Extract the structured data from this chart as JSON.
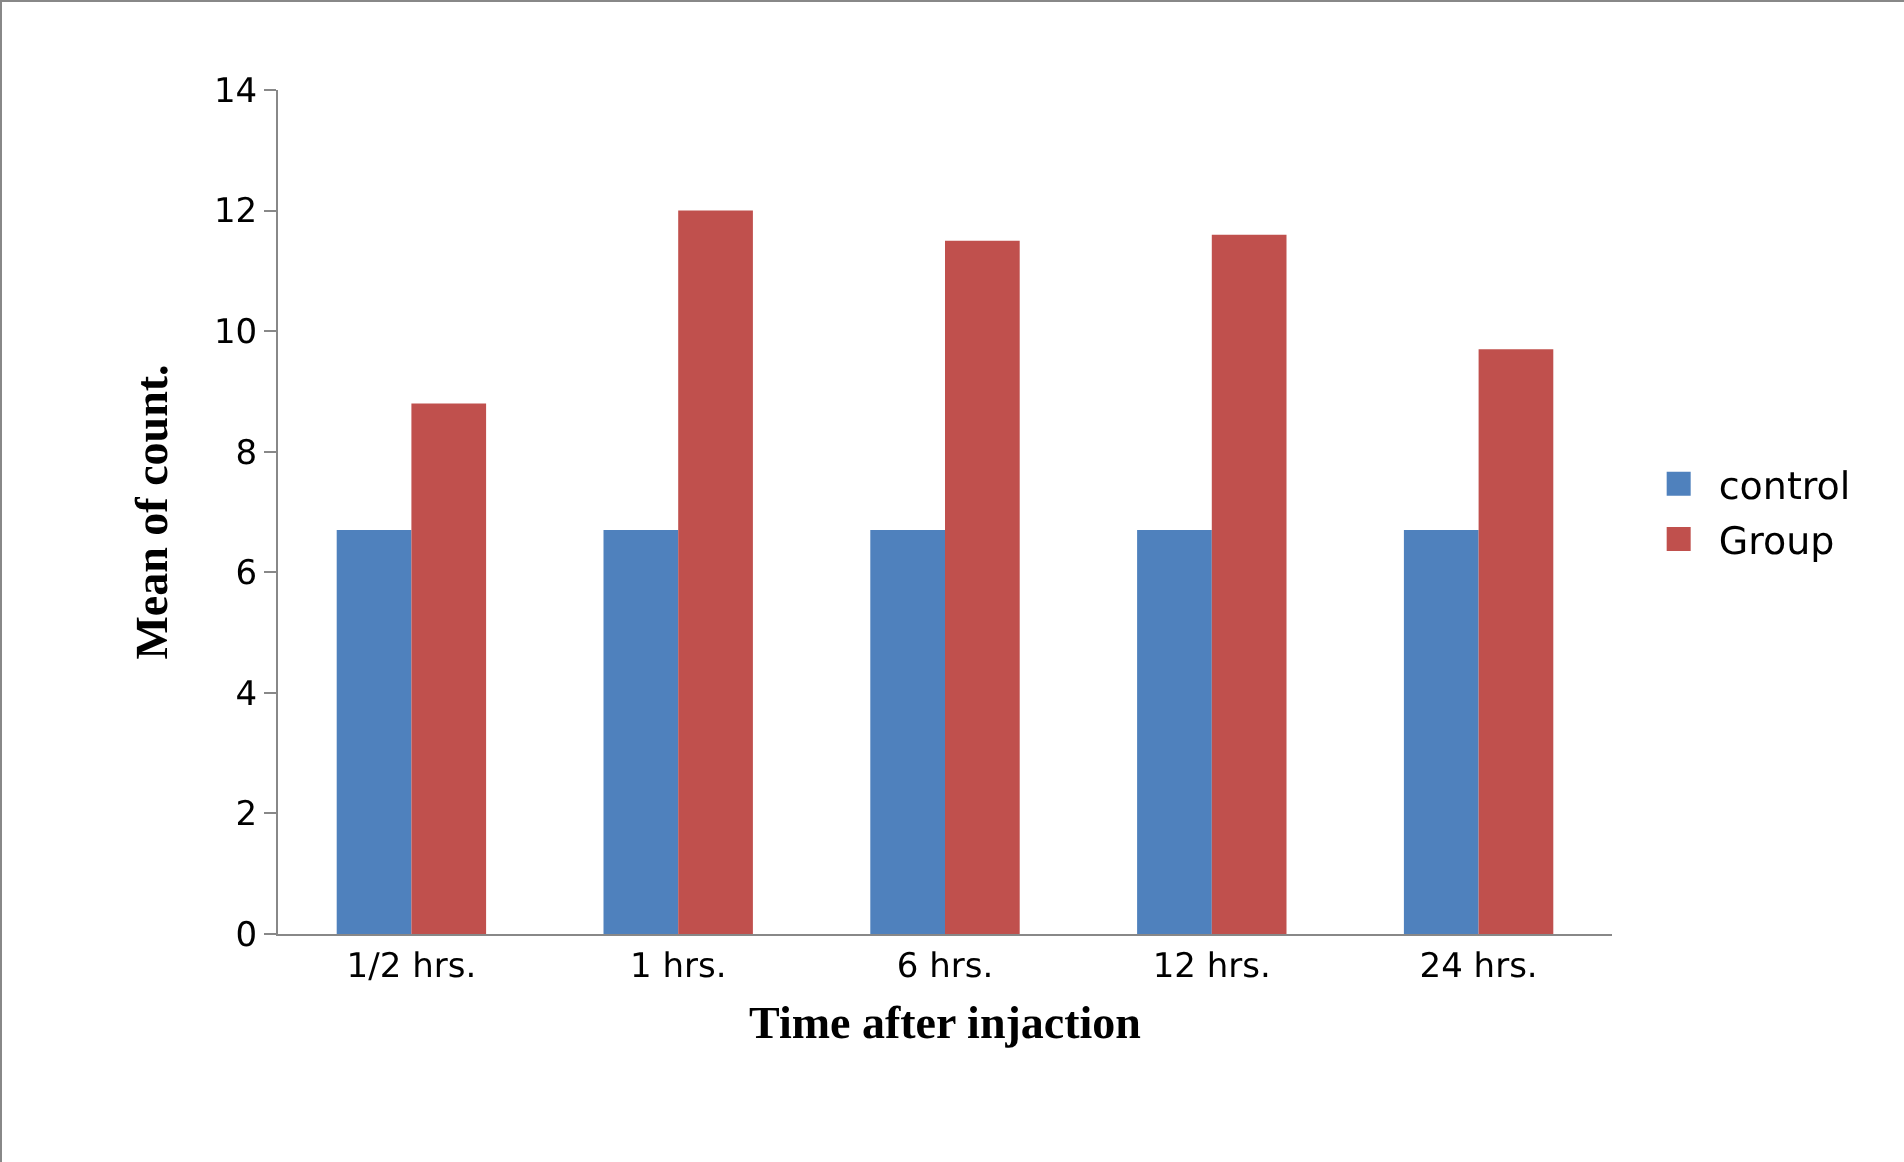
{
  "chart_data": {
    "type": "bar",
    "xlabel": "Time after injaction",
    "ylabel": "Mean of count.",
    "categories": [
      "1/2 hrs.",
      "1 hrs.",
      "6 hrs.",
      "12 hrs.",
      "24 hrs."
    ],
    "series": [
      {
        "name": "control",
        "color": "#4f81bd",
        "values": [
          6.7,
          6.7,
          6.7,
          6.7,
          6.7
        ]
      },
      {
        "name": "Group",
        "color": "#c0504d",
        "values": [
          8.8,
          12.0,
          11.5,
          11.6,
          9.7
        ]
      }
    ],
    "ylim": [
      0,
      14
    ],
    "yticks": [
      0,
      2,
      4,
      6,
      8,
      10,
      12,
      14
    ],
    "grid": false,
    "legend": "right"
  }
}
